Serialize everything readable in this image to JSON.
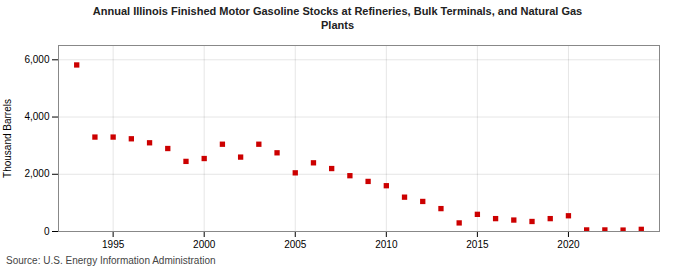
{
  "chart_data": {
    "type": "scatter",
    "title": "Annual Illinois Finished Motor Gasoline Stocks at Refineries, Bulk Terminals, and Natural Gas\nPlants",
    "ylabel": "Thousand Barrels",
    "source": "Source: U.S. Energy Information Administration",
    "x": [
      1993,
      1994,
      1995,
      1996,
      1997,
      1998,
      1999,
      2000,
      2001,
      2002,
      2003,
      2004,
      2005,
      2006,
      2007,
      2008,
      2009,
      2010,
      2011,
      2012,
      2013,
      2014,
      2015,
      2016,
      2017,
      2018,
      2019,
      2020,
      2021,
      2022,
      2023,
      2024
    ],
    "values": [
      5820,
      3300,
      3300,
      3240,
      3100,
      2900,
      2450,
      2550,
      3050,
      2600,
      3050,
      2750,
      2050,
      2400,
      2200,
      1950,
      1750,
      1600,
      1200,
      1050,
      800,
      300,
      600,
      450,
      400,
      350,
      450,
      550,
      55,
      55,
      50,
      75
    ],
    "color": "#cc0000",
    "marker": "square",
    "xlim": [
      1992.0,
      2025.0
    ],
    "xticks": [
      1995,
      2000,
      2005,
      2010,
      2015,
      2020
    ],
    "ylim": [
      0,
      6500
    ],
    "yticks": [
      0,
      {
        "value": 2000,
        "label": "2,000"
      },
      {
        "value": 4000,
        "label": "4,000"
      },
      {
        "value": 6000,
        "label": "6,000"
      }
    ],
    "grid": true
  }
}
